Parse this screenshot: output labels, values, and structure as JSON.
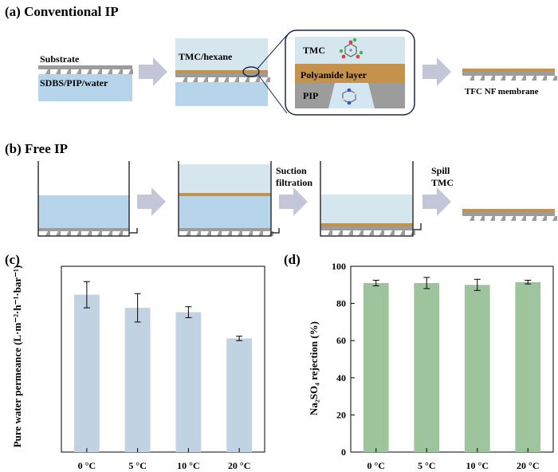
{
  "panel_a": {
    "title": "(a) Conventional IP",
    "substrate_label": "Substrate",
    "solution_label": "SDBS/PIP/water",
    "organic_label": "TMC/hexane",
    "zoom_tmc_label": "TMC",
    "zoom_polyamide_label": "Polyamide layer",
    "zoom_pip_label": "PIP",
    "product_label": "TFC NF membrane"
  },
  "panel_b": {
    "title": "(b) Free IP",
    "step_suction_line1": "Suction",
    "step_suction_line2": "filtration",
    "step_spill_line1": "Spill",
    "step_spill_line2": "TMC"
  },
  "colors": {
    "aqueous": "#b6d5ea",
    "organic": "#d6e6ee",
    "polyamide": "#c5924c",
    "substrate": "#9c9c9c",
    "arrow": "#c2c6d6",
    "bar_c": "#c1d3e3",
    "bar_d": "#9ec49e"
  },
  "chart_data": [
    {
      "type": "bar",
      "panel_label": "(c)",
      "title": "",
      "categories": [
        "0 °C",
        "5 °C",
        "10 °C",
        "20 °C"
      ],
      "values": [
        7.2,
        6.6,
        6.4,
        5.2
      ],
      "errors": [
        0.6,
        0.65,
        0.25,
        0.1
      ],
      "xlabel": "",
      "ylabel": "Pure water permeance (L·m⁻²·h⁻¹·bar⁻¹)",
      "ylim": [
        0,
        8.5
      ],
      "yticks": [],
      "grid": false,
      "legend": "none"
    },
    {
      "type": "bar",
      "panel_label": "(d)",
      "title": "",
      "categories": [
        "0 °C",
        "5 °C",
        "10 °C",
        "20 °C"
      ],
      "values": [
        91,
        91,
        90,
        91.5
      ],
      "errors": [
        1.5,
        3,
        3,
        1
      ],
      "xlabel": "",
      "ylabel": "Na₂SO₄ rejection (%)",
      "ylim": [
        0,
        100
      ],
      "yticks": [
        "0",
        "20",
        "40",
        "60",
        "80",
        "100"
      ],
      "grid": false,
      "legend": "none"
    }
  ]
}
